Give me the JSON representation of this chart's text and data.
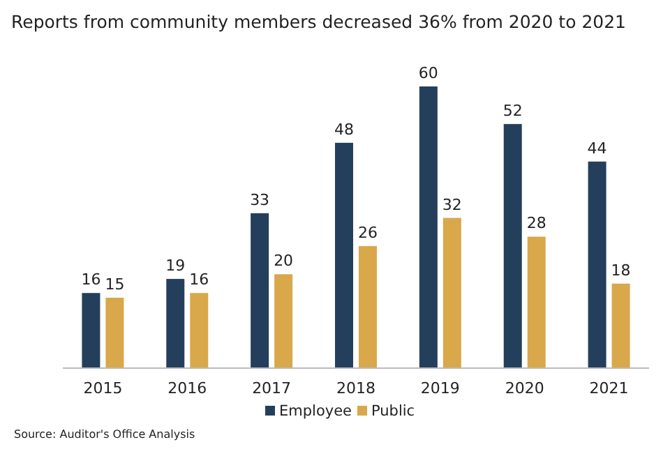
{
  "chart_data": {
    "type": "bar",
    "title": "Reports from community members decreased 36% from 2020 to 2021",
    "categories": [
      "2015",
      "2016",
      "2017",
      "2018",
      "2019",
      "2020",
      "2021"
    ],
    "series": [
      {
        "name": "Employee",
        "color": "#243f5c",
        "values": [
          16,
          19,
          33,
          48,
          60,
          52,
          44
        ]
      },
      {
        "name": "Public",
        "color": "#d9a84a",
        "values": [
          15,
          16,
          20,
          26,
          32,
          28,
          18
        ]
      }
    ],
    "data_labels": true,
    "legend": "bottom",
    "annotations": [
      "Source: Auditor's Office Analysis"
    ]
  }
}
